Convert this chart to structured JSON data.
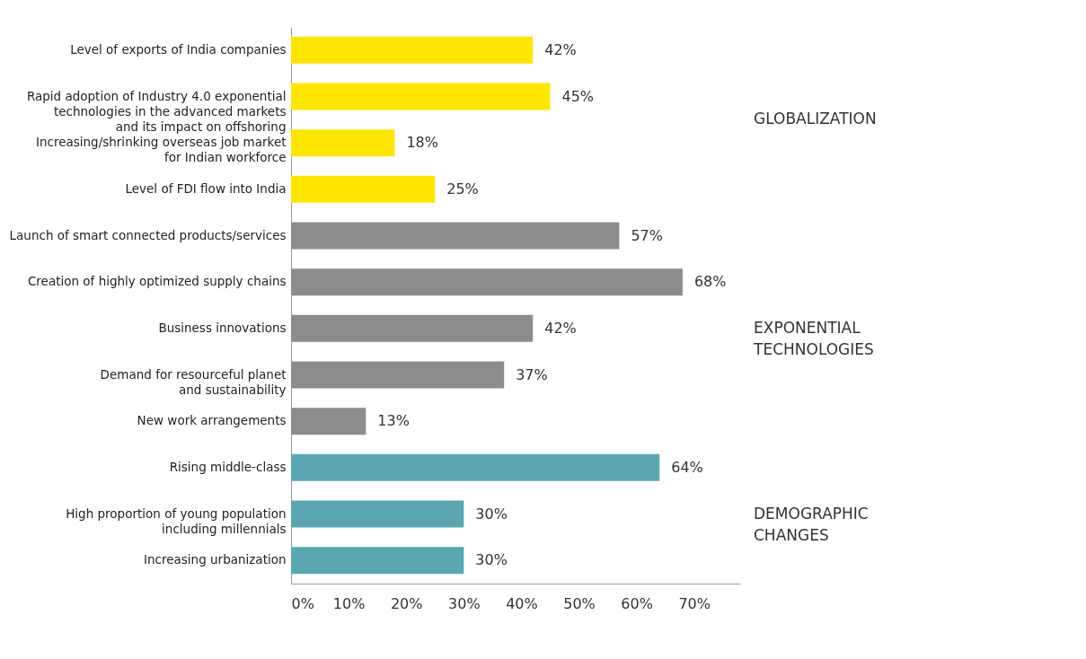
{
  "chart_data": {
    "type": "bar",
    "orientation": "horizontal",
    "categories": [
      "Level of exports of India companies",
      "Rapid adoption of Industry 4.0 exponential\ntechnologies in the advanced markets\nand its impact on offshoring",
      "Increasing/shrinking overseas job market\nfor Indian workforce",
      "Level of FDI flow into India",
      "Launch of smart connected products/services",
      "Creation of highly optimized supply chains",
      "Business innovations",
      "Demand for resourceful planet\nand sustainability",
      "New work arrangements",
      "Rising middle-class",
      "High proportion of young population\nincluding millennials",
      "Increasing urbanization"
    ],
    "series": [
      {
        "name": "GLOBALIZATION",
        "color": "#ffe600",
        "values": [
          42,
          45,
          18,
          25,
          null,
          null,
          null,
          null,
          null,
          null,
          null,
          null
        ],
        "value_labels": [
          "42%",
          "45%",
          "18%",
          "25%",
          null,
          null,
          null,
          null,
          null,
          null,
          null,
          null
        ]
      },
      {
        "name": "EXPONENTIAL TECHNOLOGIES",
        "color": "#8c8c8c",
        "values": [
          null,
          null,
          null,
          null,
          57,
          68,
          42,
          37,
          13,
          null,
          null,
          null
        ],
        "value_labels": [
          null,
          null,
          null,
          null,
          "57%",
          "68%",
          "42%",
          "37%",
          "13%",
          null,
          null,
          null
        ]
      },
      {
        "name": "DEMOGRAPHIC CHANGES",
        "color": "#5aa7b2",
        "values": [
          null,
          null,
          null,
          null,
          null,
          null,
          null,
          null,
          null,
          64,
          30,
          30
        ],
        "value_labels": [
          null,
          null,
          null,
          null,
          null,
          null,
          null,
          null,
          null,
          "64%",
          "30%",
          "30%"
        ]
      }
    ],
    "xlim": [
      0,
      78
    ],
    "xticks": [
      {
        "value": 0,
        "label": "0%"
      },
      {
        "value": 10,
        "label": "10%"
      },
      {
        "value": 20,
        "label": "20%"
      },
      {
        "value": 30,
        "label": "30%"
      },
      {
        "value": 40,
        "label": "40%"
      },
      {
        "value": 50,
        "label": "50%"
      },
      {
        "value": 60,
        "label": "60%"
      },
      {
        "value": 70,
        "label": "70%"
      }
    ],
    "grid": false,
    "legend": false
  }
}
